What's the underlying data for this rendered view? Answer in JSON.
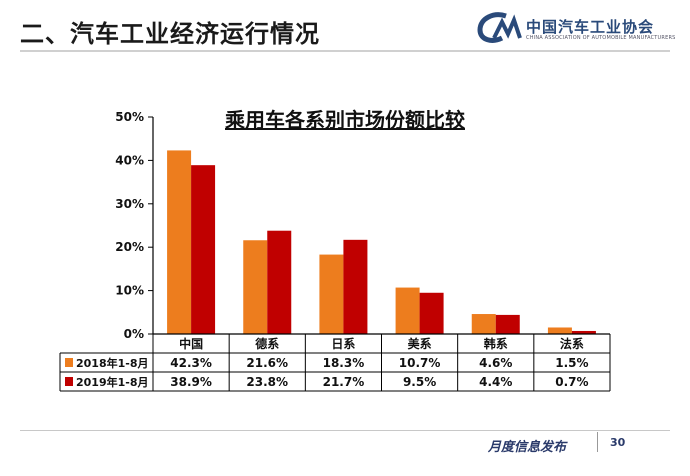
{
  "header": {
    "title": "二、汽车工业经济运行情况",
    "logo_cn": "中国汽车工业协会",
    "logo_en": "CHINA ASSOCIATION OF AUTOMOBILE MANUFACTURERS"
  },
  "footer": {
    "label": "月度信息发布",
    "page": "30"
  },
  "colors": {
    "series_2018": "#ed7d1e",
    "series_2019": "#c00000",
    "axis": "#000000",
    "table_border": "#000000"
  },
  "chart_data": {
    "type": "bar",
    "title": "乘用车各系别市场份额比较",
    "categories": [
      "中国",
      "德系",
      "日系",
      "美系",
      "韩系",
      "法系"
    ],
    "ylim": [
      0,
      50
    ],
    "yticks": [
      0,
      10,
      20,
      30,
      40,
      50
    ],
    "ytick_labels": [
      "0%",
      "10%",
      "20%",
      "30%",
      "40%",
      "50%"
    ],
    "grid": false,
    "legend_placement": "data table rows below chart",
    "series": [
      {
        "name": "2018年1-8月",
        "values": [
          42.3,
          21.6,
          18.3,
          10.7,
          4.6,
          1.5
        ],
        "labels": [
          "42.3%",
          "21.6%",
          "18.3%",
          "10.7%",
          "4.6%",
          "1.5%"
        ]
      },
      {
        "name": "2019年1-8月",
        "values": [
          38.9,
          23.8,
          21.7,
          9.5,
          4.4,
          0.7
        ],
        "labels": [
          "38.9%",
          "23.8%",
          "21.7%",
          "9.5%",
          "4.4%",
          "0.7%"
        ]
      }
    ]
  }
}
